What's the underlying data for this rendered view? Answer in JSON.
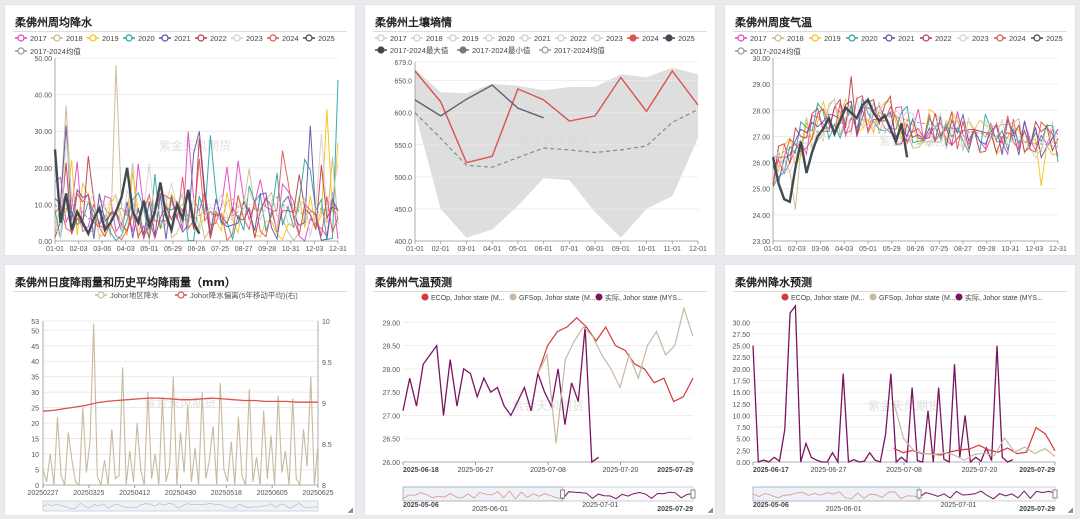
{
  "colors": {
    "y2017": "#e040c0",
    "y2018": "#c8b98a",
    "y2019": "#f4c20d",
    "y2020": "#22a3a3",
    "y2021": "#5b4ba8",
    "y2022": "#c0354a",
    "y2023": "#d6d0c4",
    "y2024": "#d9534f",
    "y2025": "#404a54",
    "max": "#444444",
    "min": "#777777",
    "mean": "#999999",
    "band": "#dedede",
    "ec": "#d33a3a",
    "gfs": "#c8b8a4",
    "actual": "#7a1460",
    "johor": "#c9b99f",
    "dev": "#d9534f"
  },
  "watermark": "紫金天风期货",
  "panels": [
    {
      "title": "柔佛州周均降水",
      "legend": [
        "2017",
        "2018",
        "2019",
        "2020",
        "2021",
        "2022",
        "2023",
        "2024",
        "2025",
        "2017-2024均值"
      ],
      "chart_data": {
        "type": "line",
        "xlabels": [
          "01-01",
          "02-03",
          "03-06",
          "04-03",
          "05-01",
          "05-29",
          "06-26",
          "07-25",
          "08-27",
          "09-28",
          "10-31",
          "12-03",
          "12-31"
        ],
        "yticks": [
          "0.00",
          "10.00",
          "20.00",
          "30.00",
          "40.00",
          "50.00"
        ],
        "ylim": [
          0,
          50
        ],
        "series": [
          {
            "name": "2025",
            "values": [
              25,
              5,
              13,
              3,
              8,
              5,
              2,
              6,
              9,
              3,
              5,
              8,
              12,
              20,
              8,
              5,
              11,
              4,
              8,
              16,
              7,
              3,
              10,
              6,
              14,
              5,
              2
            ]
          },
          {
            "name": "2017-2024均值",
            "values": [
              10,
              8,
              9,
              6,
              7,
              8,
              6,
              7,
              8,
              9,
              7,
              8,
              9,
              7,
              6,
              8,
              7,
              6,
              7,
              8,
              7,
              6,
              7,
              8,
              7,
              6,
              7,
              8,
              7,
              8,
              7,
              6,
              7,
              8,
              7,
              8,
              9,
              8,
              10,
              11,
              12,
              10,
              9,
              10,
              8,
              7,
              8,
              7,
              9,
              8,
              10,
              6
            ]
          }
        ]
      }
    },
    {
      "title": "柔佛州土壤墒情",
      "legend": [
        "2017",
        "2018",
        "2019",
        "2020",
        "2021",
        "2022",
        "2023",
        "2024",
        "2025",
        "2017-2024最大值",
        "2017-2024最小值",
        "2017-2024均值"
      ],
      "chart_data": {
        "type": "line",
        "xlabels": [
          "01-01",
          "02-01",
          "03-01",
          "04-01",
          "05-01",
          "06-01",
          "07-01",
          "08-01",
          "09-01",
          "10-01",
          "11-01",
          "12-01"
        ],
        "yticks": [
          "400.0",
          "450.0",
          "500.0",
          "550.0",
          "600.0",
          "650.0",
          "679.0"
        ],
        "ylim": [
          400,
          679
        ],
        "series": [
          {
            "name": "2024",
            "values": [
              665,
              617,
              522,
              532,
              637,
              620,
              587,
              595,
              655,
              602,
              665,
              612
            ]
          },
          {
            "name": "2025",
            "values": [
              620,
              595,
              621,
              643,
              607,
              592
            ]
          },
          {
            "name": "2017-2024均值",
            "values": [
              600,
              560,
              518,
              515,
              530,
              545,
              542,
              538,
              542,
              548,
              585,
              605
            ]
          },
          {
            "name": "2017-2024最大值",
            "values": [
              668,
              632,
              630,
              645,
              642,
              635,
              640,
              640,
              660,
              655,
              670,
              660
            ]
          },
          {
            "name": "2017-2024最小值",
            "values": [
              600,
              450,
              405,
              418,
              455,
              498,
              495,
              445,
              405,
              450,
              470,
              560
            ]
          }
        ]
      }
    },
    {
      "title": "柔佛州周度气温",
      "legend": [
        "2017",
        "2018",
        "2019",
        "2020",
        "2021",
        "2022",
        "2023",
        "2024",
        "2025",
        "2017-2024均值"
      ],
      "chart_data": {
        "type": "line",
        "xlabels": [
          "01-01",
          "02-03",
          "03-06",
          "04-03",
          "05-01",
          "05-29",
          "06-26",
          "07-25",
          "08-27",
          "09-28",
          "10-31",
          "12-03",
          "12-31"
        ],
        "yticks": [
          "23.00",
          "24.00",
          "25.00",
          "26.00",
          "27.00",
          "28.00",
          "29.00",
          "30.00"
        ],
        "ylim": [
          23,
          30
        ],
        "series": [
          {
            "name": "2025",
            "values": [
              26.2,
              25.2,
              24.6,
              24.5,
              25.8,
              26.8,
              25.6,
              26.4,
              27.0,
              27.3,
              27.7,
              27.1,
              27.6,
              28.1,
              27.9,
              27.7,
              28.2,
              28.4,
              27.9,
              27.6,
              27.8,
              27.3,
              26.8,
              27.5,
              26.2
            ]
          },
          {
            "name": "2017-2024均值",
            "values": [
              26.2,
              26.5,
              26.9,
              27.2,
              27.4,
              27.6,
              27.8,
              27.9,
              27.8,
              27.6,
              27.5,
              27.4,
              27.3,
              27.2,
              27.1,
              27.0,
              26.9,
              26.8,
              26.7,
              26.6
            ]
          }
        ]
      }
    },
    {
      "title": "柔佛州日度降雨量和历史平均降雨量（mm）",
      "legend": [
        "Johor地区降水",
        "Johor降水偏离(5年移动平均)(右)"
      ],
      "chart_data": {
        "type": "line",
        "xlabels": [
          "20250227",
          "20250325",
          "20250412",
          "20250430",
          "20250518",
          "20250605",
          "20250625"
        ],
        "yticks": [
          "0",
          "5",
          "10",
          "15",
          "20",
          "25",
          "30",
          "35",
          "40",
          "45",
          "50",
          "53"
        ],
        "ylim": [
          0,
          53
        ],
        "y2ticks": [
          "8",
          "8.5",
          "9",
          "9.5",
          "10"
        ],
        "y2lim": [
          8,
          10
        ],
        "series": [
          {
            "name": "Johor地区降水",
            "values": [
              5,
              1,
              10,
              0,
              22,
              3,
              0,
              17,
              8,
              1,
              0,
              25,
              4,
              14,
              52,
              3,
              0,
              8,
              0,
              18,
              2,
              3,
              38,
              0,
              11,
              1,
              20,
              5,
              0,
              30,
              2,
              10,
              0,
              28,
              1,
              6,
              35,
              0,
              17,
              4,
              26,
              1,
              12,
              0,
              30,
              2,
              8,
              19,
              0,
              33,
              5,
              1,
              14,
              0,
              22,
              3,
              0,
              31,
              1,
              9,
              0,
              24,
              2,
              16,
              0,
              29,
              4,
              11,
              0,
              28,
              2,
              0,
              18,
              6,
              35,
              0,
              13
            ]
          },
          {
            "name": "Johor降水偏离(5年移动平均)(右)",
            "values": [
              8.9,
              8.91,
              8.93,
              8.95,
              8.97,
              9,
              9.02,
              9.03,
              9.04,
              9.05,
              9.06,
              9.06,
              9.05,
              9.04,
              9.04,
              9.05,
              9.06,
              9.05,
              9.04,
              9.03,
              9.03,
              9.02,
              9.02,
              9.02,
              9.01,
              9.01,
              9.01
            ]
          }
        ]
      }
    },
    {
      "title": "柔佛州气温预测",
      "legend": [
        "ECOp, Johor state (M...",
        "GFSop, Johor state (M...",
        "实际, Johor state (MYS..."
      ],
      "chart_data": {
        "type": "line",
        "xlabels": [
          "2025-06-18",
          "2025-06-27",
          "2025-07-08",
          "2025-07-20",
          "2025-07-29"
        ],
        "slider_labels": [
          "2025-05-06",
          "2025-06-01",
          "2025-07-01",
          "2025-07-29"
        ],
        "yticks": [
          "26.00",
          "26.50",
          "27.00",
          "27.50",
          "28.00",
          "28.50",
          "29.00"
        ],
        "ylim": [
          26,
          29.2
        ],
        "series": [
          {
            "name": "实际",
            "values": [
              27.1,
              27.8,
              27.2,
              28.1,
              28.3,
              28.5,
              27.0,
              28.2,
              27.2,
              28.0,
              27.9,
              27.4,
              27.8,
              27.5,
              27.6,
              27.2,
              27.0,
              27.3,
              27.6,
              27.1,
              27.9,
              27.5,
              27.2,
              28.0,
              26.8,
              27.7,
              27.3,
              28.9,
              26.0,
              26.1
            ]
          },
          {
            "name": "ECOp",
            "values": [
              27.9,
              28.5,
              28.8,
              28.9,
              29.1,
              28.9,
              28.6,
              28.9,
              28.5,
              28.4,
              28.1,
              28.0,
              27.7,
              27.8,
              27.3,
              27.4,
              27.8
            ]
          },
          {
            "name": "GFSop",
            "values": [
              27.9,
              28.3,
              26.4,
              28.2,
              28.6,
              28.9,
              28.7,
              28.3,
              28.0,
              27.6,
              28.3,
              27.8,
              28.5,
              28.8,
              28.3,
              28.5,
              29.3,
              28.7
            ]
          }
        ]
      }
    },
    {
      "title": "柔佛州降水预测",
      "legend": [
        "ECOp, Johor state (M...",
        "GFSop, Johor state (M...",
        "实际, Johor state (MYS..."
      ],
      "chart_data": {
        "type": "line",
        "xlabels": [
          "2025-06-17",
          "2025-06-27",
          "2025-07-08",
          "2025-07-20",
          "2025-07-29"
        ],
        "slider_labels": [
          "2025-05-06",
          "2025-06-01",
          "2025-07-01",
          "2025-07-29"
        ],
        "yticks": [
          "0.00",
          "2.50",
          "5.00",
          "7.50",
          "10.00",
          "12.50",
          "15.00",
          "17.50",
          "20.00",
          "22.50",
          "25.00",
          "27.50",
          "30.00"
        ],
        "ylim": [
          0,
          32
        ],
        "series": [
          {
            "name": "实际",
            "values": [
              25,
              0,
              0.4,
              0,
              1,
              0.2,
              7,
              32,
              33.5,
              0,
              4,
              1,
              0.4,
              0,
              0,
              2,
              0,
              19,
              0,
              0.5,
              0,
              0.2,
              2,
              0.4,
              0,
              6,
              19,
              0,
              1,
              0,
              16,
              0.3,
              0,
              11,
              0,
              16,
              0.6,
              0,
              21,
              1,
              10,
              0,
              1,
              0.2,
              3,
              0.3,
              25,
              1,
              0,
              0.5
            ]
          },
          {
            "name": "ECOp",
            "values": [
              3,
              2,
              2.5,
              1.8,
              1.7,
              1.5,
              2.2,
              2.6,
              2.8,
              3.6,
              2.6,
              2.1,
              3.0,
              1.8,
              2.1,
              7.4,
              6.0,
              2.4
            ]
          },
          {
            "name": "GFSop",
            "values": [
              13,
              5,
              2.5,
              1.8,
              1.6,
              2.0,
              1.5,
              0.4,
              1.6,
              1.9,
              1.4,
              5.2,
              2.1,
              3.2,
              1.8,
              2.9,
              1.2
            ]
          }
        ]
      }
    }
  ]
}
